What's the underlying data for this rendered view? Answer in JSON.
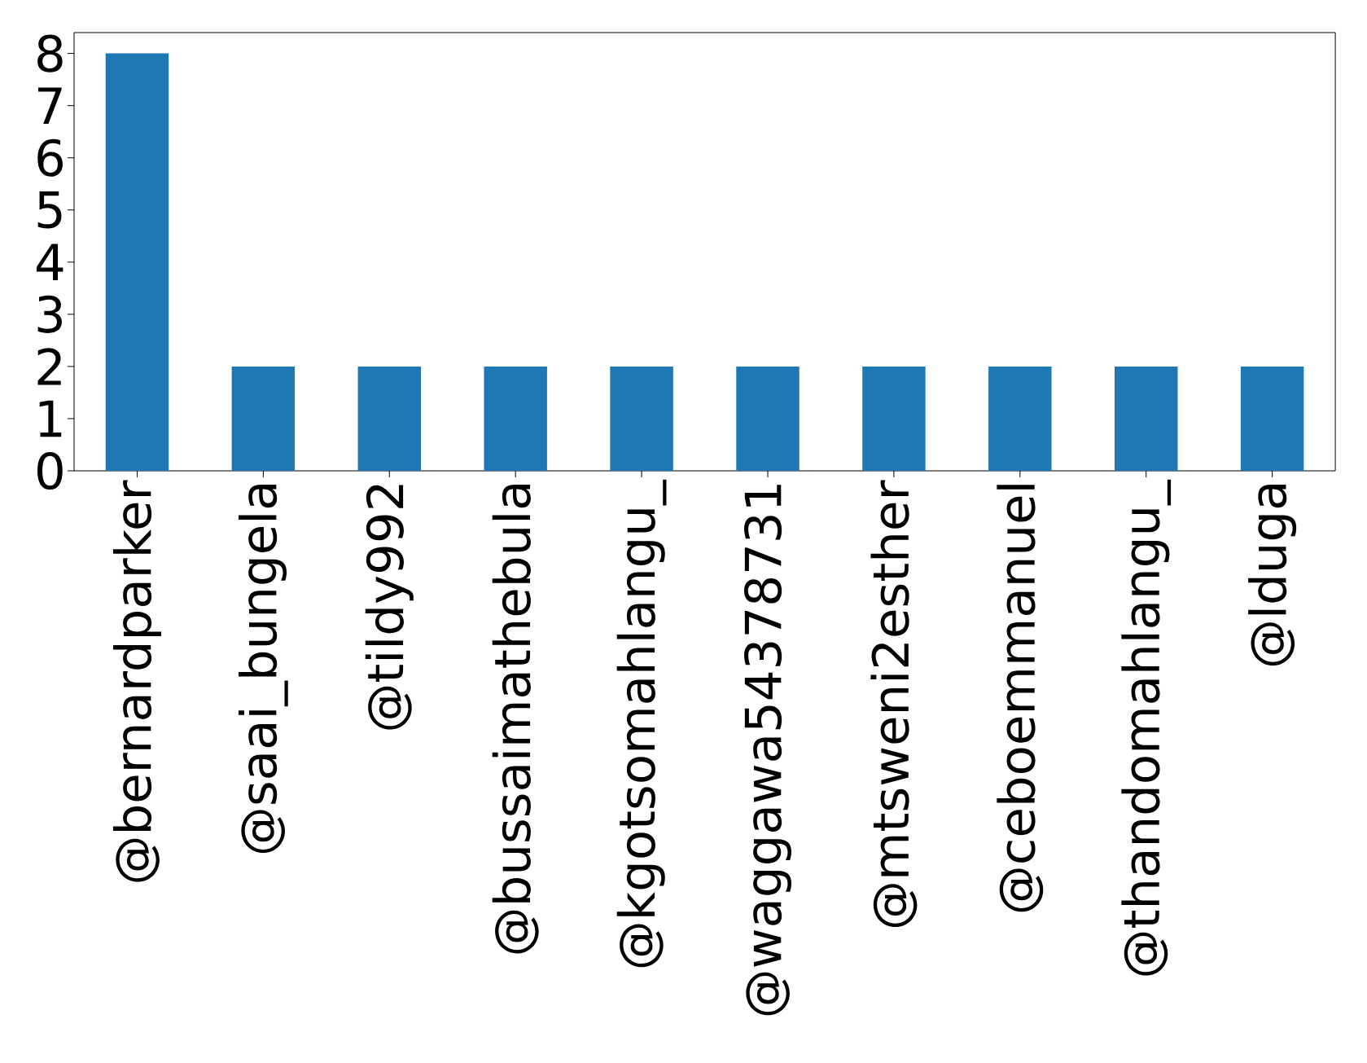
{
  "chart_data": {
    "type": "bar",
    "categories": [
      "@bernardparker",
      "@saai_bungela",
      "@tildy992",
      "@bussaimathebula",
      "@kgotsomahlangu_",
      "@waggawa54378731",
      "@mtsweni2esther",
      "@ceboemmanuel",
      "@thandomahlangu_",
      "@lduga"
    ],
    "values": [
      8,
      2,
      2,
      2,
      2,
      2,
      2,
      2,
      2,
      2
    ],
    "color": "#1f77b4",
    "ylim": [
      0,
      8.4
    ],
    "yticks": [
      0,
      1,
      2,
      3,
      4,
      5,
      6,
      7,
      8
    ],
    "grid": false
  }
}
